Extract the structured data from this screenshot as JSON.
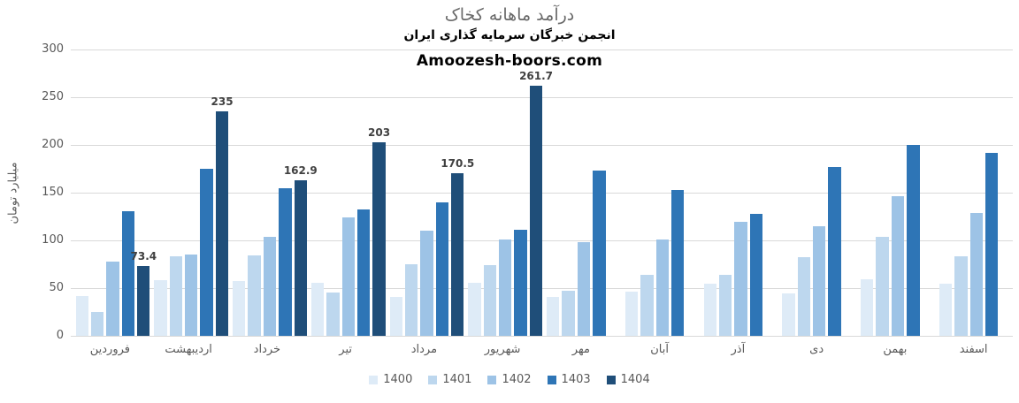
{
  "chart_data": {
    "type": "bar",
    "title": "درآمد ماهانه کخاک",
    "subtitle": "انجمن خبرگان سرمایه گذاری ایران",
    "watermark": "Amoozesh-boors.com",
    "ylabel": "میلیارد تومان",
    "xlabel": "",
    "ylim": [
      0,
      300
    ],
    "ytick_step": 50,
    "yticks": [
      "0",
      "50",
      "100",
      "150",
      "200",
      "250",
      "300"
    ],
    "grid": "horizontal",
    "legend_position": "bottom",
    "categories": [
      "فروردین",
      "اردیبهشت",
      "خرداد",
      "تیر",
      "مرداد",
      "شهریور",
      "مهر",
      "آبان",
      "آذر",
      "دی",
      "بهمن",
      "اسفند"
    ],
    "series": [
      {
        "name": "1400",
        "color": "#DEEBF7",
        "show_labels": false,
        "values": [
          42,
          58,
          57,
          56,
          41,
          56,
          41,
          46,
          55,
          44,
          59,
          55
        ]
      },
      {
        "name": "1401",
        "color": "#BDD7EE",
        "show_labels": false,
        "values": [
          25,
          83,
          84,
          45,
          75,
          74,
          47,
          64,
          64,
          82,
          104,
          83
        ]
      },
      {
        "name": "1402",
        "color": "#9DC3E6",
        "show_labels": false,
        "values": [
          78,
          85,
          104,
          124,
          110,
          101,
          98,
          101,
          119,
          115,
          146,
          129
        ]
      },
      {
        "name": "1403",
        "color": "#2E75B6",
        "show_labels": false,
        "values": [
          131,
          175,
          155,
          132,
          140,
          111,
          173,
          153,
          128,
          177,
          200,
          192
        ]
      },
      {
        "name": "1404",
        "color": "#1F4E79",
        "show_labels": true,
        "values": [
          73.4,
          235,
          162.9,
          203,
          170.5,
          261.7,
          null,
          null,
          null,
          null,
          null,
          null
        ],
        "labels": [
          "73.4",
          "235",
          "162.9",
          "203",
          "170.5",
          "261.7",
          "",
          "",
          "",
          "",
          "",
          ""
        ]
      }
    ]
  },
  "colors": {
    "gridline": "#D9D9D9",
    "axis_text": "#595959",
    "title_text": "#6A6A6A",
    "subtitle_text": "#000000",
    "bar_label_text": "#404040",
    "background": "#FFFFFF"
  }
}
